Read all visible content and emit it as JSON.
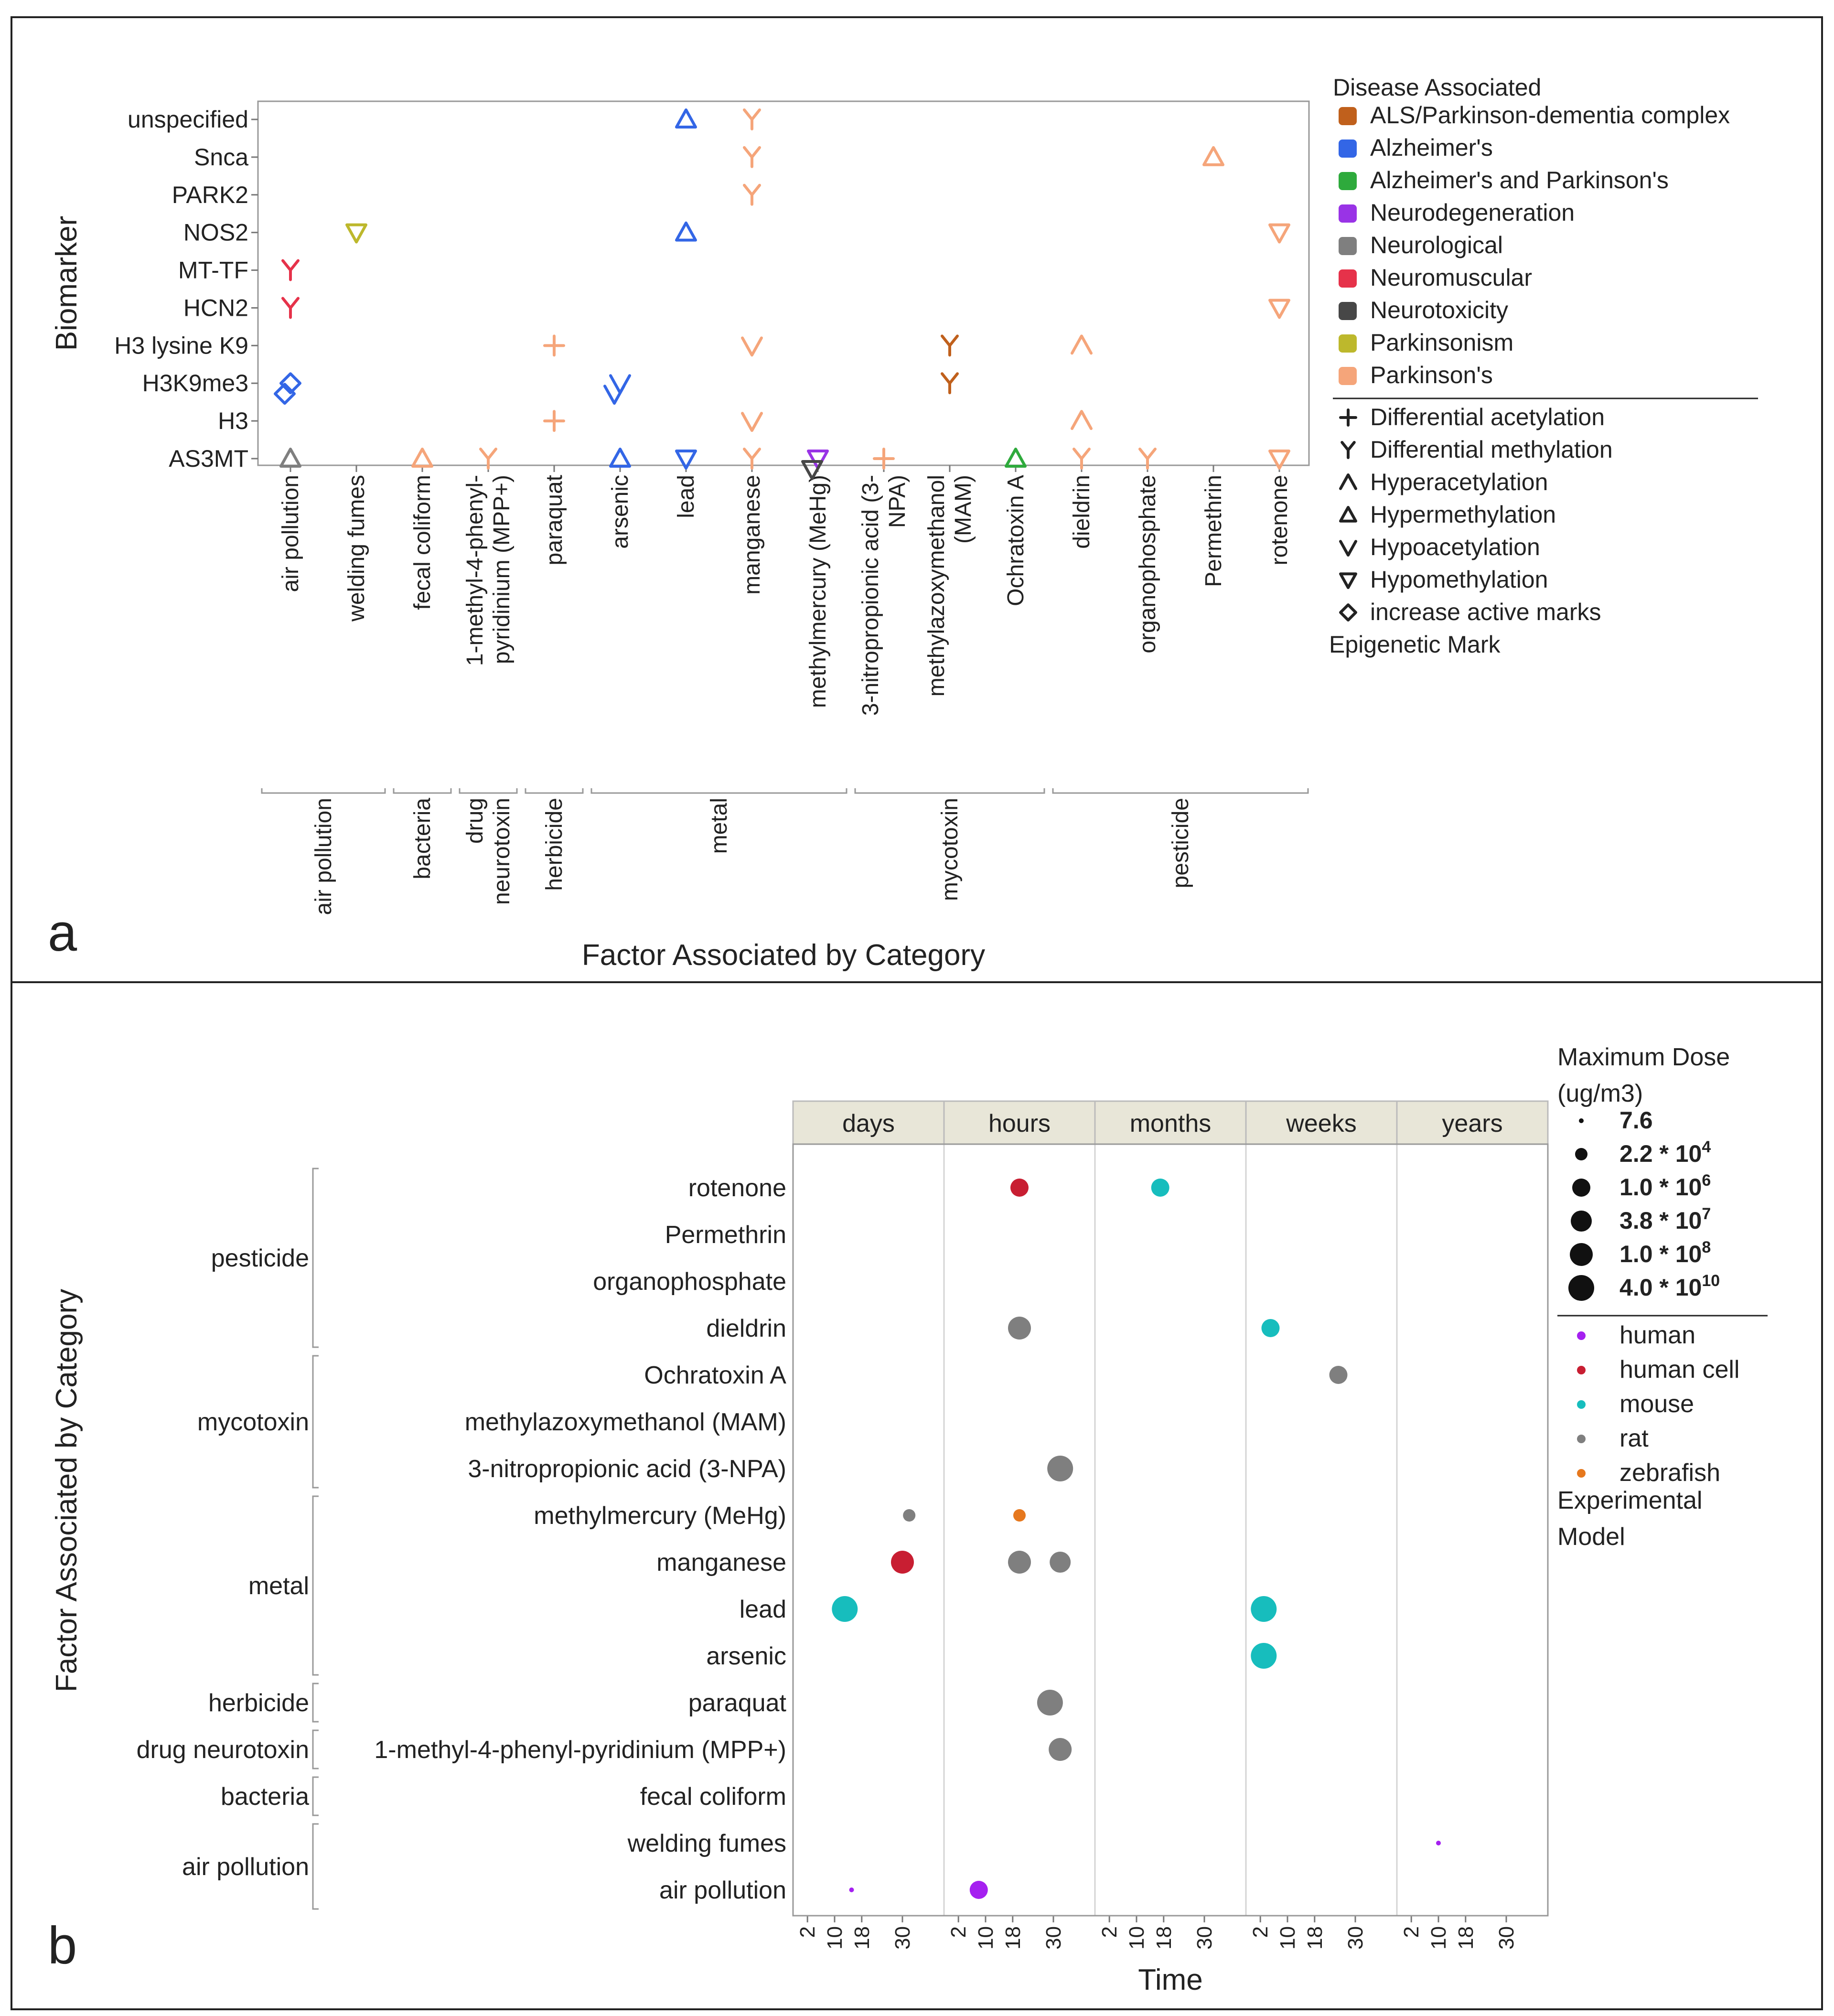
{
  "colors": {
    "ALS/Parkinson-dementia complex": "#c0601c",
    "Alzheimer's": "#3366e6",
    "Alzheimer's and Parkinson's": "#2eaa3c",
    "Neurodegeneration": "#9933e6",
    "Neurological": "#7f7f7f",
    "Neuromuscular": "#e6324a",
    "Neurotoxicity": "#474747",
    "Parkinsonism": "#bdb82c",
    "Parkinson's": "#f5a57a",
    "human": "#a520f0",
    "human cell": "#c81e32",
    "mouse": "#17bdbd",
    "rat": "#7f7f7f",
    "zebrafish": "#e6781e"
  },
  "chart_data": [
    {
      "panel": "a",
      "type": "scatter",
      "ylabel": "Biomarker",
      "xlabel": "Factor Associated by Category",
      "y_categories": [
        "AS3MT",
        "H3",
        "H3K9me3",
        "H3 lysine K9",
        "HCN2",
        "MT-TF",
        "NOS2",
        "PARK2",
        "Snca",
        "unspecified"
      ],
      "factors": [
        "air pollution",
        "welding fumes",
        "fecal coliform",
        "1-methyl-4-phenyl-pyridinium (MPP+)",
        "paraquat",
        "arsenic",
        "lead",
        "manganese",
        "methylmercury (MeHg)",
        "3-nitropropionic acid (3-NPA)",
        "methylazoxymethanol (MAM)",
        "Ochratoxin A",
        "dieldrin",
        "organophosphate",
        "Permethrin",
        "rotenone"
      ],
      "factor_lines": [
        [
          "air pollution"
        ],
        [
          "welding fumes"
        ],
        [
          "fecal coliform"
        ],
        [
          "1-methyl-4-phenyl-",
          "pyridinium (MPP+)"
        ],
        [
          "paraquat"
        ],
        [
          "arsenic"
        ],
        [
          "lead"
        ],
        [
          "manganese"
        ],
        [
          "methylmercury (MeHg)"
        ],
        [
          "3-nitropropionic acid (3-",
          "NPA)"
        ],
        [
          "methylazoxymethanol",
          "(MAM)"
        ],
        [
          "Ochratoxin A"
        ],
        [
          "dieldrin"
        ],
        [
          "organophosphate"
        ],
        [
          "Permethrin"
        ],
        [
          "rotenone"
        ]
      ],
      "groups": [
        {
          "name": "air pollution",
          "lines": [
            "air pollution"
          ],
          "start": 0,
          "end": 1
        },
        {
          "name": "bacteria",
          "lines": [
            "bacteria"
          ],
          "start": 2,
          "end": 2
        },
        {
          "name": "drug neurotoxin",
          "lines": [
            "drug",
            "neurotoxin"
          ],
          "start": 3,
          "end": 3
        },
        {
          "name": "herbicide",
          "lines": [
            "herbicide"
          ],
          "start": 4,
          "end": 4
        },
        {
          "name": "metal",
          "lines": [
            "metal"
          ],
          "start": 5,
          "end": 8
        },
        {
          "name": "mycotoxin",
          "lines": [
            "mycotoxin"
          ],
          "start": 9,
          "end": 11
        },
        {
          "name": "pesticide",
          "lines": [
            "pesticide"
          ],
          "start": 12,
          "end": 15
        }
      ],
      "legend_title": "Disease Associated",
      "legend_diseases": [
        "ALS/Parkinson-dementia complex",
        "Alzheimer's",
        "Alzheimer's and Parkinson's",
        "Neurodegeneration",
        "Neurological",
        "Neuromuscular",
        "Neurotoxicity",
        "Parkinsonism",
        "Parkinson's"
      ],
      "legend_marks_title": "Epigenetic Mark",
      "legend_marks": [
        {
          "label": "Differential acetylation",
          "symbol": "plus"
        },
        {
          "label": "Differential methylation",
          "symbol": "y"
        },
        {
          "label": "Hyperacetylation",
          "symbol": "caret"
        },
        {
          "label": "Hypermethylation",
          "symbol": "tri_up"
        },
        {
          "label": "Hypoacetylation",
          "symbol": "vee"
        },
        {
          "label": "Hypomethylation",
          "symbol": "tri_down"
        },
        {
          "label": "increase active marks",
          "symbol": "diamond"
        }
      ],
      "points": [
        {
          "f": 0,
          "y": "AS3MT",
          "j": 0,
          "m": "tri_up",
          "d": "Neurological"
        },
        {
          "f": 0,
          "y": "H3K9me3",
          "j": 0.1,
          "m": "diamond",
          "d": "Alzheimer's"
        },
        {
          "f": 0,
          "y": "H3K9me3",
          "j": 0,
          "m": "diamond",
          "d": "Alzheimer's"
        },
        {
          "f": 0,
          "y": "MT-TF",
          "j": 0,
          "m": "y",
          "d": "Neuromuscular"
        },
        {
          "f": 0,
          "y": "HCN2",
          "j": 0,
          "m": "y",
          "d": "Neuromuscular"
        },
        {
          "f": 1,
          "y": "NOS2",
          "j": 0,
          "m": "tri_down",
          "d": "Parkinsonism"
        },
        {
          "f": 2,
          "y": "AS3MT",
          "j": 0,
          "m": "tri_up",
          "d": "Parkinson's"
        },
        {
          "f": 3,
          "y": "AS3MT",
          "j": 0,
          "m": "y",
          "d": "Parkinson's"
        },
        {
          "f": 4,
          "y": "H3",
          "j": 0,
          "m": "plus",
          "d": "Parkinson's"
        },
        {
          "f": 4,
          "y": "H3 lysine K9",
          "j": 0,
          "m": "plus",
          "d": "Parkinson's"
        },
        {
          "f": 5,
          "y": "H3K9me3",
          "j": 0,
          "m": "vee",
          "d": "Alzheimer's"
        },
        {
          "f": 5,
          "y": "H3K9me3",
          "j": 0,
          "m": "vee",
          "d": "Alzheimer's"
        },
        {
          "f": 5,
          "y": "AS3MT",
          "j": 0,
          "m": "tri_up",
          "d": "Alzheimer's"
        },
        {
          "f": 6,
          "y": "unspecified",
          "j": 0,
          "m": "tri_up",
          "d": "Alzheimer's"
        },
        {
          "f": 6,
          "y": "NOS2",
          "j": 0,
          "m": "tri_up",
          "d": "Alzheimer's"
        },
        {
          "f": 6,
          "y": "AS3MT",
          "j": 0,
          "m": "tri_down",
          "d": "Alzheimer's"
        },
        {
          "f": 7,
          "y": "unspecified",
          "j": 0,
          "m": "y",
          "d": "Parkinson's"
        },
        {
          "f": 7,
          "y": "Snca",
          "j": 0,
          "m": "y",
          "d": "Parkinson's"
        },
        {
          "f": 7,
          "y": "PARK2",
          "j": 0,
          "m": "y",
          "d": "Parkinson's"
        },
        {
          "f": 7,
          "y": "H3 lysine K9",
          "j": 0,
          "m": "vee",
          "d": "Parkinson's"
        },
        {
          "f": 7,
          "y": "H3",
          "j": 0,
          "m": "vee",
          "d": "Parkinson's"
        },
        {
          "f": 7,
          "y": "AS3MT",
          "j": 0,
          "m": "y",
          "d": "Parkinson's"
        },
        {
          "f": 8,
          "y": "AS3MT",
          "j": 0,
          "m": "tri_down",
          "d": "Neurodegeneration"
        },
        {
          "f": 8,
          "y": "AS3MT",
          "j": 0,
          "m": "tri_down",
          "d": "Neurotoxicity"
        },
        {
          "f": 9,
          "y": "AS3MT",
          "j": 0,
          "m": "plus",
          "d": "Parkinson's"
        },
        {
          "f": 10,
          "y": "H3 lysine K9",
          "j": 0,
          "m": "y",
          "d": "ALS/Parkinson-dementia complex"
        },
        {
          "f": 10,
          "y": "H3K9me3",
          "j": 0,
          "m": "y",
          "d": "ALS/Parkinson-dementia complex"
        },
        {
          "f": 11,
          "y": "AS3MT",
          "j": 0,
          "m": "tri_up",
          "d": "Alzheimer's and Parkinson's"
        },
        {
          "f": 12,
          "y": "H3 lysine K9",
          "j": 0,
          "m": "caret",
          "d": "Parkinson's"
        },
        {
          "f": 12,
          "y": "H3",
          "j": 0,
          "m": "caret",
          "d": "Parkinson's"
        },
        {
          "f": 12,
          "y": "AS3MT",
          "j": 0,
          "m": "y",
          "d": "Parkinson's"
        },
        {
          "f": 13,
          "y": "AS3MT",
          "j": 0,
          "m": "y",
          "d": "Parkinson's"
        },
        {
          "f": 14,
          "y": "Snca",
          "j": 0,
          "m": "tri_up",
          "d": "Parkinson's"
        },
        {
          "f": 15,
          "y": "NOS2",
          "j": 0,
          "m": "tri_down",
          "d": "Parkinson's"
        },
        {
          "f": 15,
          "y": "HCN2",
          "j": 0,
          "m": "tri_down",
          "d": "Parkinson's"
        },
        {
          "f": 15,
          "y": "AS3MT",
          "j": 0,
          "m": "tri_down",
          "d": "Parkinson's"
        }
      ]
    },
    {
      "panel": "b",
      "type": "scatter",
      "xlabel": "Time",
      "ylabel": "Factor Associated by Category",
      "facets": [
        "days",
        "hours",
        "months",
        "weeks",
        "years"
      ],
      "x_ticks": [
        "2",
        "10",
        "18",
        "30"
      ],
      "xlim": [
        0,
        40
      ],
      "rows": [
        "rotenone",
        "Permethrin",
        "organophosphate",
        "dieldrin",
        "Ochratoxin A",
        "methylazoxymethanol (MAM)",
        "3-nitropropionic acid (3-NPA)",
        "methylmercury (MeHg)",
        "manganese",
        "lead",
        "arsenic",
        "paraquat",
        "1-methyl-4-phenyl-pyridinium (MPP+)",
        "fecal coliform",
        "welding fumes",
        "air pollution"
      ],
      "groups": [
        {
          "name": "pesticide",
          "start": 0,
          "end": 3
        },
        {
          "name": "mycotoxin",
          "start": 4,
          "end": 6
        },
        {
          "name": "metal",
          "start": 7,
          "end": 10
        },
        {
          "name": "herbicide",
          "start": 11,
          "end": 11
        },
        {
          "name": "drug neurotoxin",
          "start": 12,
          "end": 12
        },
        {
          "name": "bacteria",
          "start": 13,
          "end": 13
        },
        {
          "name": "air pollution",
          "start": 14,
          "end": 15
        }
      ],
      "size_legend_title": [
        "Maximum Dose",
        "(ug/m3)"
      ],
      "size_legend": [
        {
          "mantissa": "7.6",
          "exp": "",
          "r": 5
        },
        {
          "mantissa": "2.2 * 10",
          "exp": "4",
          "r": 13
        },
        {
          "mantissa": "1.0 * 10",
          "exp": "6",
          "r": 19
        },
        {
          "mantissa": "3.8 * 10",
          "exp": "7",
          "r": 22
        },
        {
          "mantissa": "1.0 * 10",
          "exp": "8",
          "r": 24
        },
        {
          "mantissa": "4.0 * 10",
          "exp": "10",
          "r": 27
        }
      ],
      "model_legend": [
        "human",
        "human cell",
        "mouse",
        "rat",
        "zebrafish"
      ],
      "model_legend_title": [
        "Experimental",
        "Model"
      ],
      "points": [
        {
          "row": "rotenone",
          "facet": "hours",
          "x": 20,
          "model": "human cell",
          "size": 2
        },
        {
          "row": "rotenone",
          "facet": "months",
          "x": 17,
          "model": "mouse",
          "size": 2
        },
        {
          "row": "dieldrin",
          "facet": "hours",
          "x": 20,
          "model": "rat",
          "size": 4
        },
        {
          "row": "dieldrin",
          "facet": "weeks",
          "x": 5,
          "model": "mouse",
          "size": 2
        },
        {
          "row": "Ochratoxin A",
          "facet": "weeks",
          "x": 25,
          "model": "rat",
          "size": 2
        },
        {
          "row": "3-nitropropionic acid (3-NPA)",
          "facet": "hours",
          "x": 32,
          "model": "rat",
          "size": 5
        },
        {
          "row": "methylmercury (MeHg)",
          "facet": "days",
          "x": 32,
          "model": "rat",
          "size": 1
        },
        {
          "row": "methylmercury (MeHg)",
          "facet": "hours",
          "x": 20,
          "model": "zebrafish",
          "size": 1
        },
        {
          "row": "manganese",
          "facet": "days",
          "x": 30,
          "model": "human cell",
          "size": 4
        },
        {
          "row": "manganese",
          "facet": "hours",
          "x": 20,
          "model": "rat",
          "size": 4
        },
        {
          "row": "manganese",
          "facet": "hours",
          "x": 32,
          "model": "rat",
          "size": 3
        },
        {
          "row": "lead",
          "facet": "days",
          "x": 13,
          "model": "mouse",
          "size": 5
        },
        {
          "row": "lead",
          "facet": "weeks",
          "x": 3,
          "model": "mouse",
          "size": 5
        },
        {
          "row": "arsenic",
          "facet": "weeks",
          "x": 3,
          "model": "mouse",
          "size": 5
        },
        {
          "row": "paraquat",
          "facet": "hours",
          "x": 29,
          "model": "rat",
          "size": 5
        },
        {
          "row": "1-methyl-4-phenyl-pyridinium (MPP+)",
          "facet": "hours",
          "x": 32,
          "model": "rat",
          "size": 4
        },
        {
          "row": "welding fumes",
          "facet": "years",
          "x": 10,
          "model": "human",
          "size": 0
        },
        {
          "row": "air pollution",
          "facet": "days",
          "x": 15,
          "model": "human",
          "size": 0
        },
        {
          "row": "air pollution",
          "facet": "hours",
          "x": 8,
          "model": "human",
          "size": 2
        }
      ]
    }
  ],
  "panel_labels": {
    "a": "a",
    "b": "b"
  }
}
